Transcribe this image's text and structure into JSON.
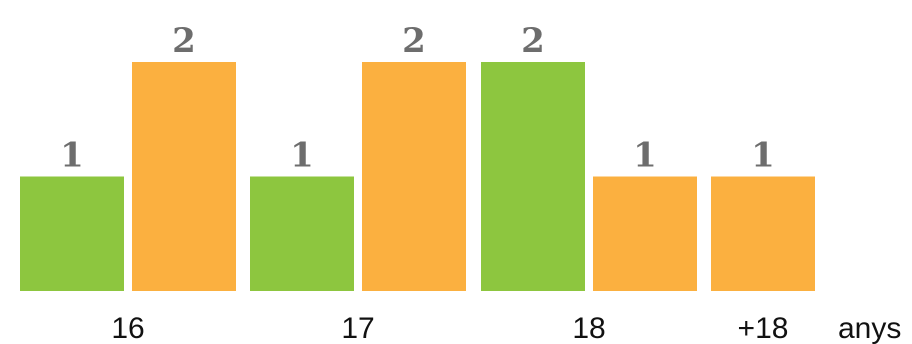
{
  "chart_data": {
    "type": "bar",
    "categories": [
      "16",
      "17",
      "18",
      "+18"
    ],
    "unit_label": "anys",
    "ylim": [
      0,
      2
    ],
    "series": [
      {
        "color": "#8dc63f",
        "values": [
          1,
          1,
          2,
          null
        ]
      },
      {
        "color": "#fbb040",
        "values": [
          2,
          2,
          1,
          1
        ]
      }
    ],
    "grid": false,
    "legend": "none"
  }
}
